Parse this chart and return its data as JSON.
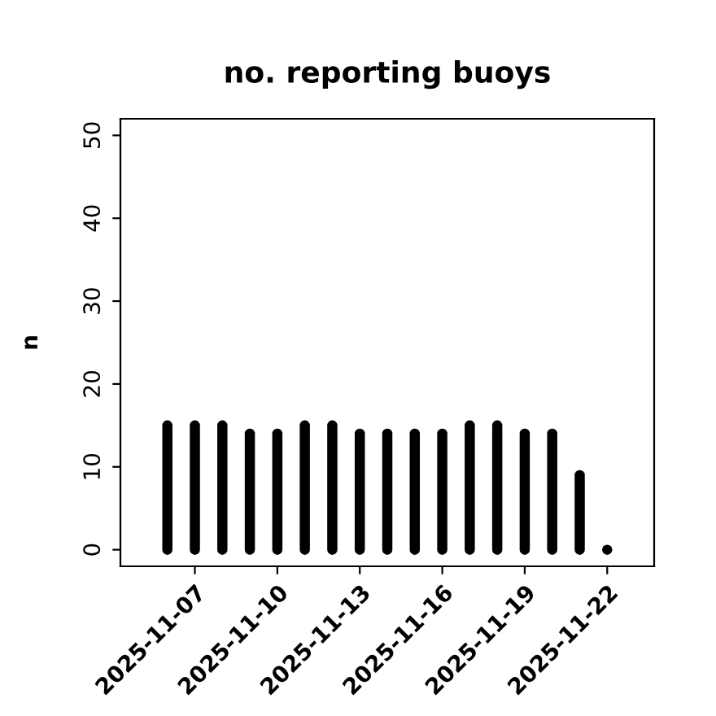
{
  "chart_data": {
    "type": "bar",
    "title": "no. reporting buoys",
    "ylabel": "n",
    "x": [
      "2025-11-06",
      "2025-11-07",
      "2025-11-08",
      "2025-11-09",
      "2025-11-10",
      "2025-11-11",
      "2025-11-12",
      "2025-11-13",
      "2025-11-14",
      "2025-11-15",
      "2025-11-16",
      "2025-11-17",
      "2025-11-18",
      "2025-11-19",
      "2025-11-20",
      "2025-11-21",
      "2025-11-22"
    ],
    "values": [
      15,
      15,
      15,
      14,
      14,
      15,
      15,
      14,
      14,
      14,
      14,
      15,
      15,
      14,
      14,
      9,
      0
    ],
    "color": "#000000",
    "xlim": [
      "2025-11-04T07:00",
      "2025-11-23T17:00"
    ],
    "xticks": [
      "2025-11-07",
      "2025-11-10",
      "2025-11-13",
      "2025-11-16",
      "2025-11-19",
      "2025-11-22"
    ],
    "ylim": [
      -2,
      52
    ],
    "yticks": [
      0,
      10,
      20,
      30,
      40,
      50
    ],
    "grid": false,
    "legend": false
  }
}
